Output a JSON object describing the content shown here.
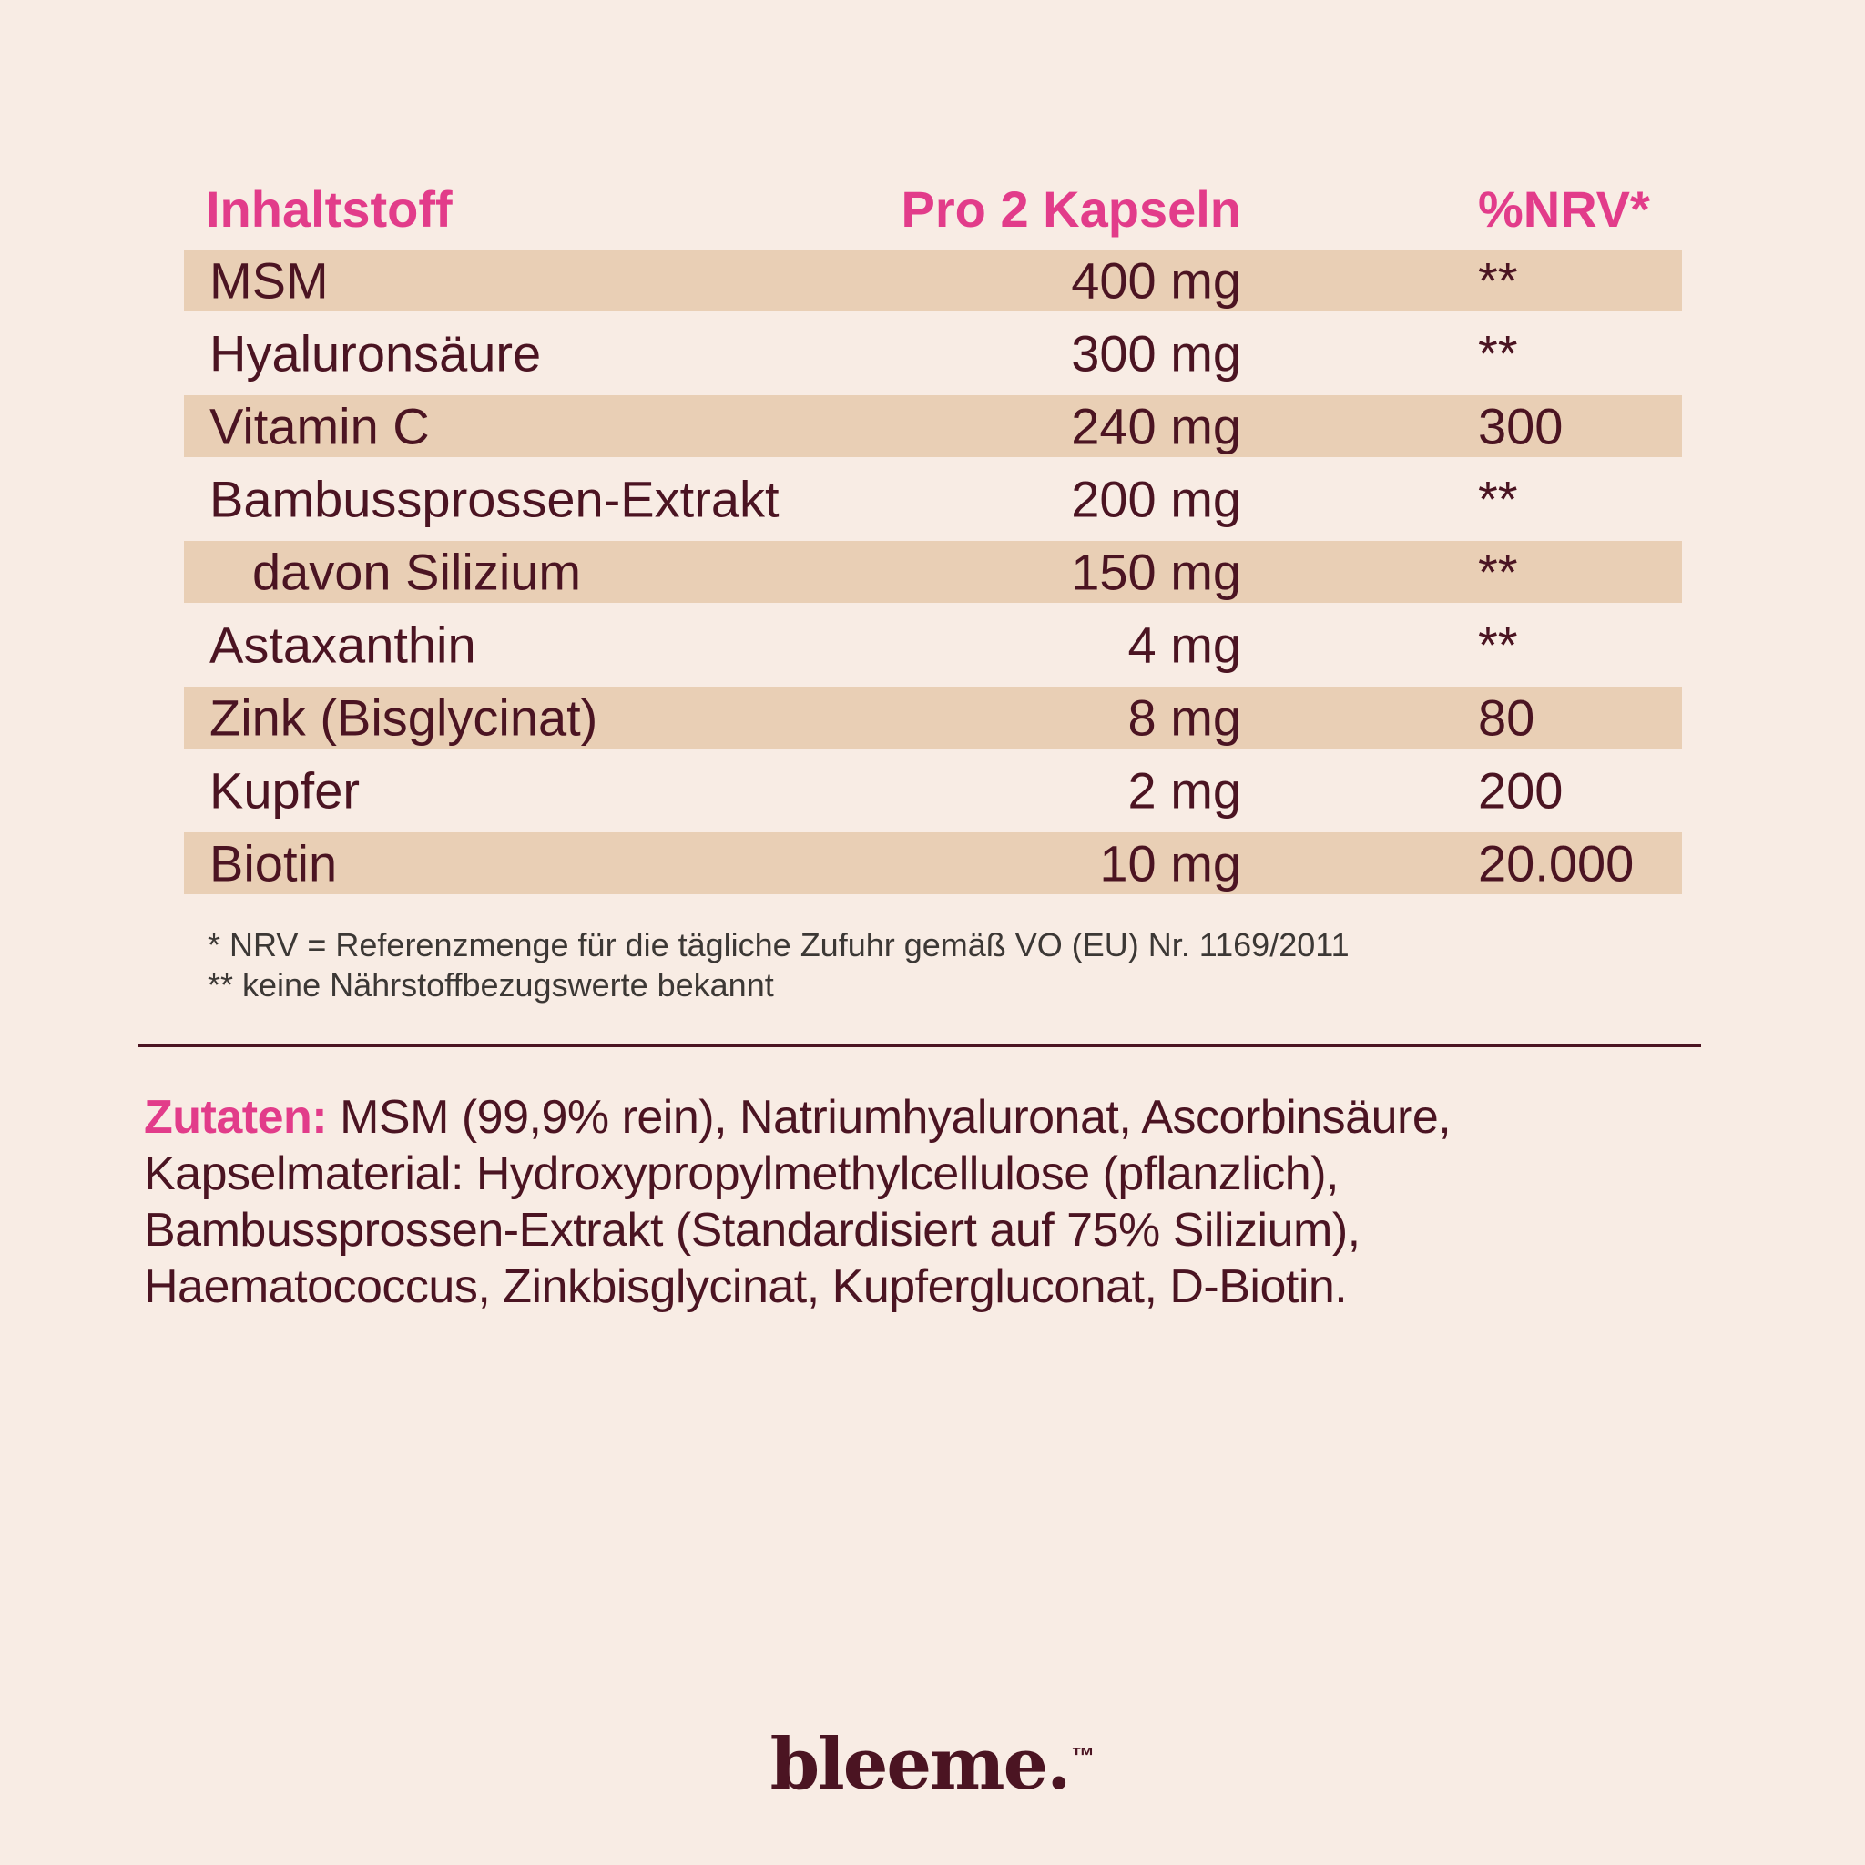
{
  "colors": {
    "background": "#f8ece4",
    "stripe": "#e9cfb5",
    "accent_pink": "#e23c8a",
    "text_maroon": "#4b1422",
    "footnote_gray": "#3c3835"
  },
  "table": {
    "headers": {
      "ingredient": "Inhaltstoff",
      "amount": "Pro 2 Kapseln",
      "nrv": "%NRV*"
    },
    "rows": [
      {
        "name": "MSM",
        "amount": "400 mg",
        "nrv": "**",
        "striped": true,
        "indent": false
      },
      {
        "name": "Hyaluronsäure",
        "amount": "300 mg",
        "nrv": "**",
        "striped": false,
        "indent": false
      },
      {
        "name": "Vitamin C",
        "amount": "240 mg",
        "nrv": "300",
        "striped": true,
        "indent": false
      },
      {
        "name": "Bambussprossen-Extrakt",
        "amount": "200 mg",
        "nrv": "**",
        "striped": false,
        "indent": false
      },
      {
        "name": "davon Silizium",
        "amount": "150 mg",
        "nrv": "**",
        "striped": true,
        "indent": true
      },
      {
        "name": "Astaxanthin",
        "amount": "4 mg",
        "nrv": "**",
        "striped": false,
        "indent": false
      },
      {
        "name": "Zink (Bisglycinat)",
        "amount": "8 mg",
        "nrv": "80",
        "striped": true,
        "indent": false
      },
      {
        "name": "Kupfer",
        "amount": "2 mg",
        "nrv": "200",
        "striped": false,
        "indent": false
      },
      {
        "name": "Biotin",
        "amount": "10 mg",
        "nrv": "20.000",
        "striped": true,
        "indent": false
      }
    ]
  },
  "footnotes": [
    "* NRV = Referenzmenge für die tägliche Zufuhr gemäß VO (EU) Nr. 1169/2011",
    "** keine Nährstoffbezugswerte bekannt"
  ],
  "ingredients": {
    "label": "Zutaten:",
    "lines": [
      "MSM (99,9% rein), Natriumhyaluronat, Ascorbinsäure,",
      "Kapselmaterial: Hydroxypropylmethylcellulose (pflanzlich),",
      "Bambussprossen-Extrakt (Standardisiert auf 75% Silizium),",
      "Haematococcus, Zinkbisglycinat, Kupfergluconat, D-Biotin."
    ]
  },
  "logo": {
    "text": "bleeme.",
    "tm": "™"
  }
}
